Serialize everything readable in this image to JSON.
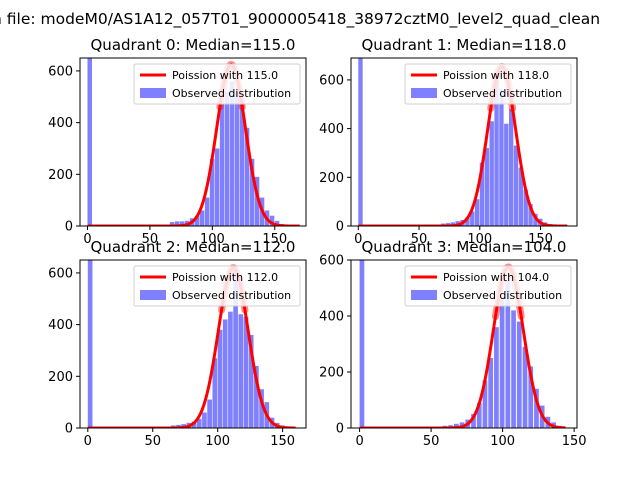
{
  "suptitle": "n file: modeM0/AS1A12_057T01_9000005418_38972cztM0_level2_quad_clean",
  "colors": {
    "observed": "#8080ff",
    "poisson": "#ff0000",
    "axis": "#000000",
    "background": "#ffffff"
  },
  "chart_data": [
    {
      "type": "bar",
      "title": "Quadrant 0: Median=115.0",
      "xlim": [
        -6,
        175
      ],
      "ylim": [
        0,
        650
      ],
      "xticks": [
        0,
        50,
        100,
        150
      ],
      "yticks": [
        0,
        200,
        400,
        600
      ],
      "legend_placement": "top-right",
      "series": [
        {
          "name": "Poission with 115.0",
          "kind": "line",
          "mean": 115.0,
          "scale": 625,
          "sigma": 11.5,
          "x_range": [
            0,
            170
          ]
        },
        {
          "name": "Observed distribution",
          "kind": "histogram",
          "bin_width": 3.6,
          "bins": [
            {
              "x": 0,
              "y": 650
            },
            {
              "x": 66,
              "y": 15
            },
            {
              "x": 70,
              "y": 18
            },
            {
              "x": 74,
              "y": 18
            },
            {
              "x": 78,
              "y": 20
            },
            {
              "x": 82,
              "y": 30
            },
            {
              "x": 86,
              "y": 40
            },
            {
              "x": 90,
              "y": 60
            },
            {
              "x": 94,
              "y": 110
            },
            {
              "x": 98,
              "y": 260
            },
            {
              "x": 102,
              "y": 300
            },
            {
              "x": 106,
              "y": 470
            },
            {
              "x": 110,
              "y": 520
            },
            {
              "x": 114,
              "y": 560
            },
            {
              "x": 118,
              "y": 520
            },
            {
              "x": 122,
              "y": 480
            },
            {
              "x": 126,
              "y": 380
            },
            {
              "x": 130,
              "y": 260
            },
            {
              "x": 134,
              "y": 190
            },
            {
              "x": 138,
              "y": 110
            },
            {
              "x": 142,
              "y": 60
            },
            {
              "x": 146,
              "y": 40
            },
            {
              "x": 150,
              "y": 20
            },
            {
              "x": 154,
              "y": 8
            }
          ]
        }
      ]
    },
    {
      "type": "bar",
      "title": "Quadrant 1: Median=118.0",
      "xlim": [
        -6,
        180
      ],
      "ylim": [
        0,
        690
      ],
      "xticks": [
        0,
        50,
        100,
        150
      ],
      "yticks": [
        0,
        200,
        400,
        600
      ],
      "legend_placement": "top-right",
      "series": [
        {
          "name": "Poission with 118.0",
          "kind": "line",
          "mean": 118.0,
          "scale": 655,
          "sigma": 11.5,
          "x_range": [
            0,
            172
          ]
        },
        {
          "name": "Observed distribution",
          "kind": "histogram",
          "bin_width": 3.6,
          "bins": [
            {
              "x": 0,
              "y": 690
            },
            {
              "x": 68,
              "y": 10
            },
            {
              "x": 72,
              "y": 12
            },
            {
              "x": 76,
              "y": 15
            },
            {
              "x": 80,
              "y": 20
            },
            {
              "x": 84,
              "y": 25
            },
            {
              "x": 88,
              "y": 35
            },
            {
              "x": 92,
              "y": 60
            },
            {
              "x": 96,
              "y": 110
            },
            {
              "x": 100,
              "y": 260
            },
            {
              "x": 104,
              "y": 320
            },
            {
              "x": 108,
              "y": 430
            },
            {
              "x": 112,
              "y": 600
            },
            {
              "x": 116,
              "y": 560
            },
            {
              "x": 120,
              "y": 420
            },
            {
              "x": 124,
              "y": 480
            },
            {
              "x": 128,
              "y": 330
            },
            {
              "x": 132,
              "y": 240
            },
            {
              "x": 136,
              "y": 150
            },
            {
              "x": 140,
              "y": 90
            },
            {
              "x": 144,
              "y": 50
            },
            {
              "x": 148,
              "y": 30
            },
            {
              "x": 152,
              "y": 15
            },
            {
              "x": 156,
              "y": 8
            }
          ]
        }
      ]
    },
    {
      "type": "bar",
      "title": "Quadrant 2: Median=112.0",
      "xlim": [
        -6,
        168
      ],
      "ylim": [
        0,
        650
      ],
      "xticks": [
        0,
        50,
        100,
        150
      ],
      "yticks": [
        0,
        200,
        400,
        600
      ],
      "legend_placement": "top-right",
      "series": [
        {
          "name": "Poission with 112.0",
          "kind": "line",
          "mean": 112.0,
          "scale": 620,
          "sigma": 11.5,
          "x_range": [
            0,
            160
          ]
        },
        {
          "name": "Observed distribution",
          "kind": "histogram",
          "bin_width": 3.6,
          "bins": [
            {
              "x": 0,
              "y": 650
            },
            {
              "x": 64,
              "y": 10
            },
            {
              "x": 68,
              "y": 12
            },
            {
              "x": 72,
              "y": 15
            },
            {
              "x": 76,
              "y": 20
            },
            {
              "x": 80,
              "y": 25
            },
            {
              "x": 84,
              "y": 35
            },
            {
              "x": 88,
              "y": 60
            },
            {
              "x": 92,
              "y": 110
            },
            {
              "x": 96,
              "y": 270
            },
            {
              "x": 100,
              "y": 380
            },
            {
              "x": 104,
              "y": 420
            },
            {
              "x": 108,
              "y": 450
            },
            {
              "x": 112,
              "y": 610
            },
            {
              "x": 116,
              "y": 440
            },
            {
              "x": 120,
              "y": 430
            },
            {
              "x": 124,
              "y": 360
            },
            {
              "x": 128,
              "y": 240
            },
            {
              "x": 132,
              "y": 150
            },
            {
              "x": 136,
              "y": 100
            },
            {
              "x": 140,
              "y": 40
            },
            {
              "x": 144,
              "y": 20
            },
            {
              "x": 148,
              "y": 10
            }
          ]
        }
      ]
    },
    {
      "type": "bar",
      "title": "Quadrant 3: Median=104.0",
      "xlim": [
        -6,
        152
      ],
      "ylim": [
        0,
        600
      ],
      "xticks": [
        0,
        50,
        100,
        150
      ],
      "yticks": [
        0,
        200,
        400,
        600
      ],
      "legend_placement": "top-right",
      "series": [
        {
          "name": "Poission with 104.0",
          "kind": "line",
          "mean": 104.0,
          "scale": 575,
          "sigma": 10.5,
          "x_range": [
            0,
            144
          ]
        },
        {
          "name": "Observed distribution",
          "kind": "histogram",
          "bin_width": 3.3,
          "bins": [
            {
              "x": 0,
              "y": 600
            },
            {
              "x": 58,
              "y": 8
            },
            {
              "x": 62,
              "y": 10
            },
            {
              "x": 66,
              "y": 15
            },
            {
              "x": 70,
              "y": 20
            },
            {
              "x": 74,
              "y": 30
            },
            {
              "x": 78,
              "y": 50
            },
            {
              "x": 82,
              "y": 90
            },
            {
              "x": 86,
              "y": 170
            },
            {
              "x": 90,
              "y": 250
            },
            {
              "x": 94,
              "y": 360
            },
            {
              "x": 98,
              "y": 460
            },
            {
              "x": 102,
              "y": 530
            },
            {
              "x": 106,
              "y": 420
            },
            {
              "x": 110,
              "y": 380
            },
            {
              "x": 114,
              "y": 290
            },
            {
              "x": 118,
              "y": 220
            },
            {
              "x": 122,
              "y": 140
            },
            {
              "x": 126,
              "y": 80
            },
            {
              "x": 130,
              "y": 40
            },
            {
              "x": 134,
              "y": 20
            },
            {
              "x": 138,
              "y": 8
            }
          ]
        }
      ]
    }
  ]
}
